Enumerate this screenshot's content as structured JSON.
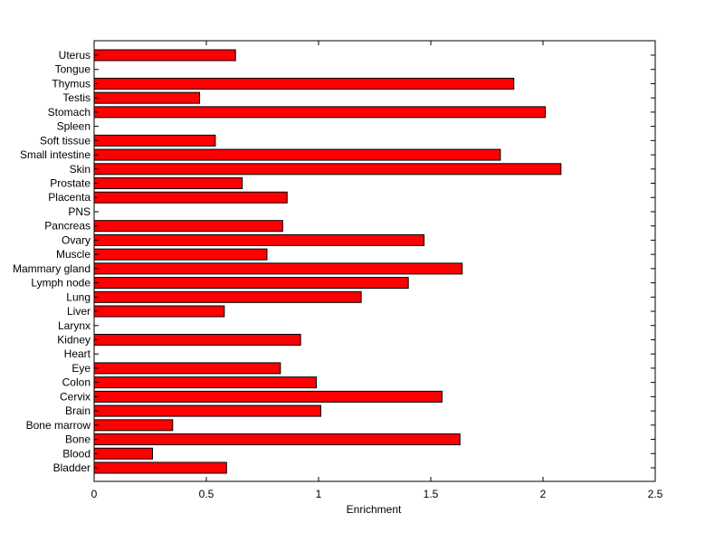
{
  "chart_data": {
    "type": "bar",
    "orientation": "horizontal",
    "title": "",
    "xlabel": "Enrichment",
    "ylabel": "",
    "xlim": [
      0,
      2.5
    ],
    "xticks": [
      "0",
      "0.5",
      "1",
      "1.5",
      "2",
      "2.5"
    ],
    "grid": false,
    "legend": "none",
    "bar_color": "#ff0000",
    "categories": [
      "Uterus",
      "Tongue",
      "Thymus",
      "Testis",
      "Stomach",
      "Spleen",
      "Soft tissue",
      "Small intestine",
      "Skin",
      "Prostate",
      "Placenta",
      "PNS",
      "Pancreas",
      "Ovary",
      "Muscle",
      "Mammary gland",
      "Lymph node",
      "Lung",
      "Liver",
      "Larynx",
      "Kidney",
      "Heart",
      "Eye",
      "Colon",
      "Cervix",
      "Brain",
      "Bone marrow",
      "Bone",
      "Blood",
      "Bladder"
    ],
    "values": [
      0.63,
      0,
      1.87,
      0.47,
      2.01,
      0,
      0.54,
      1.81,
      2.08,
      0.66,
      0.86,
      0,
      0.84,
      1.47,
      0.77,
      1.64,
      1.4,
      1.19,
      0.58,
      0,
      0.92,
      0,
      0.83,
      0.99,
      1.55,
      1.01,
      0.35,
      1.63,
      0.26,
      0.59
    ]
  }
}
